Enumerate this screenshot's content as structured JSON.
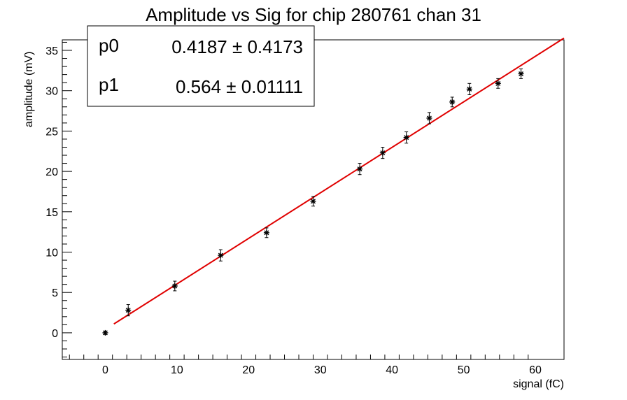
{
  "chart_data": {
    "type": "scatter",
    "title": "Amplitude vs Sig for chip 280761 chan 31",
    "xlabel": "signal (fC)",
    "ylabel": "amplitude (mV)",
    "xlim": [
      -6,
      64
    ],
    "ylim": [
      -3.3,
      36.3
    ],
    "xticks": [
      0,
      10,
      20,
      30,
      40,
      50,
      60
    ],
    "yticks": [
      0,
      5,
      10,
      15,
      20,
      25,
      30,
      35
    ],
    "grid": false,
    "legend": "none",
    "series": [
      {
        "x": [
          0,
          3.2,
          9.7,
          16.1,
          22.5,
          29.0,
          35.5,
          38.7,
          42.0,
          45.2,
          48.4,
          50.8,
          54.8,
          58.0
        ],
        "y": [
          0,
          2.8,
          5.8,
          9.6,
          12.4,
          16.3,
          20.3,
          22.3,
          24.2,
          26.6,
          28.6,
          30.2,
          30.9,
          32.1
        ],
        "yerr": [
          0.2,
          0.7,
          0.6,
          0.7,
          0.6,
          0.6,
          0.7,
          0.7,
          0.7,
          0.7,
          0.6,
          0.7,
          0.6,
          0.6
        ],
        "color": "#000000"
      }
    ],
    "fit": {
      "color": "#e00000",
      "x_range": [
        1.2,
        64
      ],
      "params": [
        {
          "name": "p0",
          "value": "0.4187",
          "error": "0.4173"
        },
        {
          "name": "p1",
          "value": "0.564",
          "error": "0.01111"
        }
      ],
      "intercept": 0.4187,
      "slope": 0.564
    }
  }
}
